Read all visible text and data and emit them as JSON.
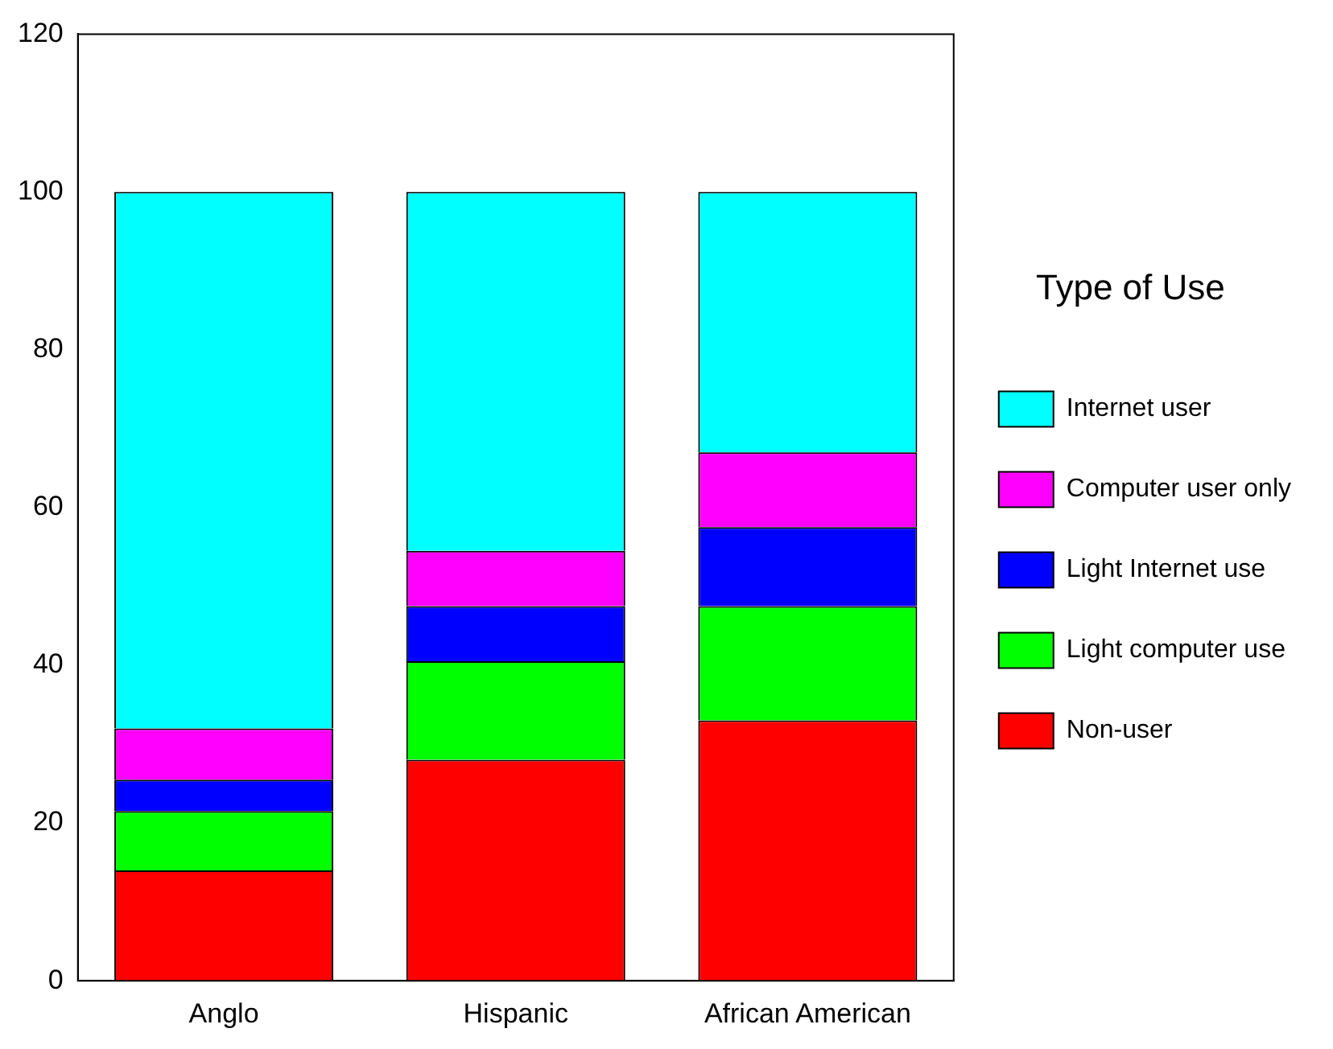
{
  "chart_data": {
    "type": "bar",
    "stacked": true,
    "categories": [
      "Anglo",
      "Hispanic",
      "African American"
    ],
    "legend_title": "Type of Use",
    "legend": "right",
    "grid": false,
    "ylim": [
      0,
      120
    ],
    "yticks": [
      0,
      20,
      40,
      60,
      80,
      100,
      120
    ],
    "series": [
      {
        "name": "Non-user",
        "color": "#ff0000",
        "values": [
          14,
          28,
          33
        ]
      },
      {
        "name": "Light computer use",
        "color": "#00ff00",
        "values": [
          7.5,
          12.5,
          14.5
        ]
      },
      {
        "name": "Light Internet use",
        "color": "#0000ff",
        "values": [
          4,
          7,
          10
        ]
      },
      {
        "name": "Computer user only",
        "color": "#ff00ff",
        "values": [
          6.5,
          7,
          9.5
        ]
      },
      {
        "name": "Internet user",
        "color": "#00ffff",
        "values": [
          68,
          45.5,
          33
        ]
      }
    ]
  }
}
